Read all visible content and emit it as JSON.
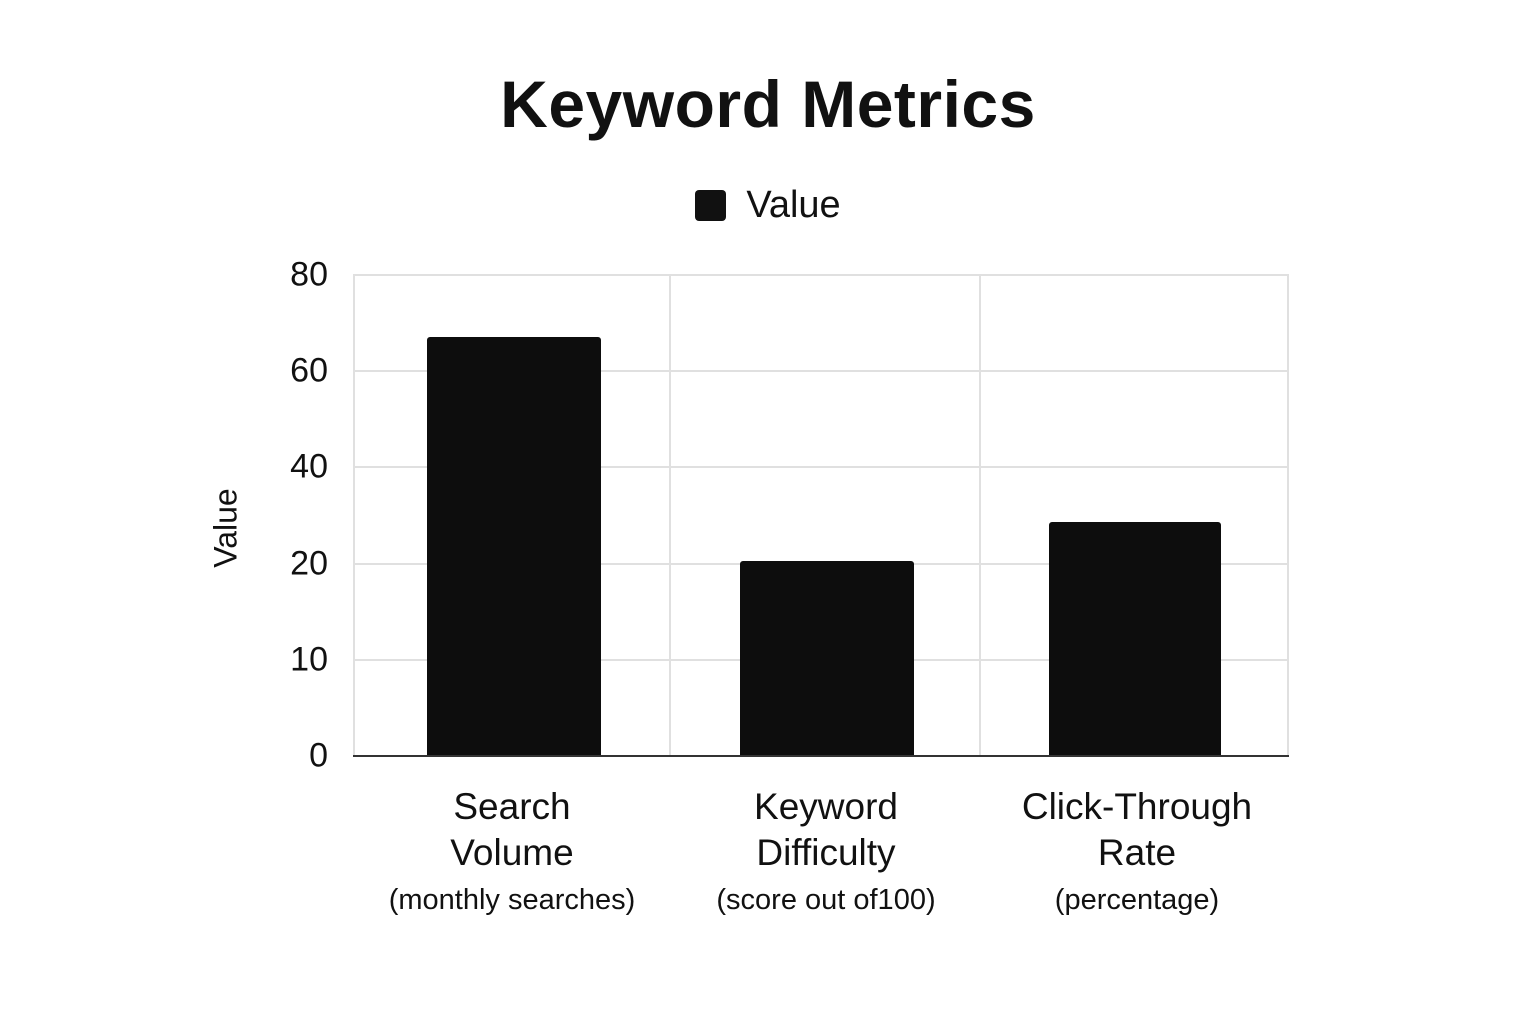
{
  "chart_data": {
    "type": "bar",
    "title": "Keyword Metrics",
    "legend": [
      {
        "label": "Value",
        "color": "#111111"
      }
    ],
    "legend_position": "top",
    "xlabel": "",
    "ylabel": "Value",
    "ytick_labels": [
      "0",
      "10",
      "20",
      "40",
      "60",
      "80"
    ],
    "ylim": [
      0,
      80
    ],
    "grid": true,
    "categories": [
      {
        "line1": "Search",
        "line2": "Volume",
        "sub": "(monthly searches)"
      },
      {
        "line1": "Keyword",
        "line2": "Difficulty",
        "sub": "(score out of100)"
      },
      {
        "line1": "Click-Through",
        "line2": "Rate",
        "sub": "(percentage)"
      }
    ],
    "category_names": [
      "Search Volume (monthly searches)",
      "Keyword Difficulty (score out of100)",
      "Click-Through Rate (percentage)"
    ],
    "series": [
      {
        "name": "Value",
        "values": [
          67,
          20.5,
          28.5
        ],
        "color": "#0d0d0d"
      }
    ]
  }
}
